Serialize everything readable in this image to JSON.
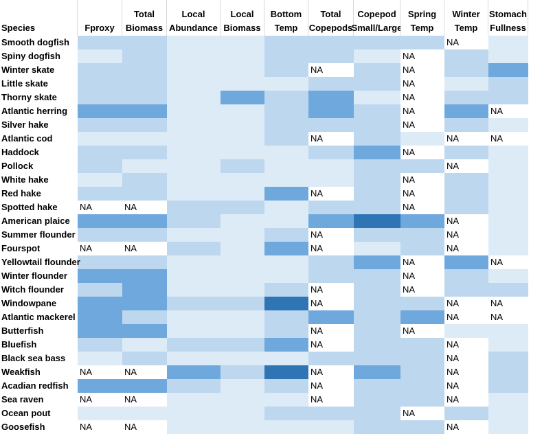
{
  "columns": [
    "Species",
    "Fproxy",
    "Total Biomass",
    "Local Abundance",
    "Local Biomass",
    "Bottom Temp",
    "Total Copepods",
    "Copepod Small/Large",
    "Spring Temp",
    "Winter Temp",
    "Stomach Fullness"
  ],
  "header_lines": [
    [
      "",
      "Species"
    ],
    [
      "",
      "Fproxy"
    ],
    [
      "Total",
      "Biomass"
    ],
    [
      "Local",
      "Abundance"
    ],
    [
      "Local",
      "Biomass"
    ],
    [
      "Bottom",
      "Temp"
    ],
    [
      "Total",
      "Copepods"
    ],
    [
      "Copepod",
      "Small/Large"
    ],
    [
      "Spring",
      "Temp"
    ],
    [
      "Winter",
      "Temp"
    ],
    [
      "Stomach",
      "Fullness"
    ]
  ],
  "colors": {
    "0": "#ffffff",
    "1": "#ddebf7",
    "2": "#bdd7ee",
    "3": "#6fa8dc",
    "4": "#2f75b5",
    "na": "#ffffff"
  },
  "legend_note": "cell shade levels: 0 = white, 1 = very light, 2 = light, 3 = medium, 4 = dark",
  "chart_data": {
    "type": "heatmap",
    "columns": [
      "Fproxy",
      "Total Biomass",
      "Local Abundance",
      "Local Biomass",
      "Bottom Temp",
      "Total Copepods",
      "Copepod Small/Large",
      "Spring Temp",
      "Winter Temp",
      "Stomach Fullness"
    ],
    "rows": [
      {
        "species": "Smooth dogfish",
        "cells": [
          2,
          2,
          1,
          1,
          2,
          2,
          2,
          2,
          "NA",
          1
        ]
      },
      {
        "species": "Spiny dogfish",
        "cells": [
          1,
          2,
          1,
          1,
          2,
          2,
          1,
          "NA",
          2,
          1
        ]
      },
      {
        "species": "Winter skate",
        "cells": [
          2,
          2,
          1,
          1,
          2,
          "NA",
          2,
          "NA",
          2,
          3
        ]
      },
      {
        "species": "Little skate",
        "cells": [
          2,
          2,
          1,
          1,
          1,
          2,
          2,
          "NA",
          1,
          2
        ]
      },
      {
        "species": "Thorny skate",
        "cells": [
          2,
          2,
          1,
          3,
          2,
          3,
          1,
          "NA",
          2,
          2
        ]
      },
      {
        "species": "Atlantic herring",
        "cells": [
          3,
          3,
          1,
          1,
          2,
          3,
          2,
          "NA",
          3,
          "NA"
        ]
      },
      {
        "species": "Silver hake",
        "cells": [
          2,
          2,
          1,
          1,
          2,
          2,
          2,
          "NA",
          2,
          1
        ]
      },
      {
        "species": "Atlantic cod",
        "cells": [
          1,
          1,
          1,
          1,
          2,
          "NA",
          2,
          1,
          "NA",
          "NA"
        ]
      },
      {
        "species": "Haddock",
        "cells": [
          2,
          2,
          1,
          1,
          1,
          2,
          3,
          "NA",
          2,
          1
        ]
      },
      {
        "species": "Pollock",
        "cells": [
          2,
          1,
          1,
          2,
          1,
          1,
          2,
          2,
          "NA",
          1
        ]
      },
      {
        "species": "White hake",
        "cells": [
          1,
          2,
          1,
          1,
          1,
          1,
          2,
          "NA",
          2,
          1
        ]
      },
      {
        "species": "Red hake",
        "cells": [
          2,
          2,
          1,
          1,
          3,
          "NA",
          2,
          "NA",
          2,
          1
        ]
      },
      {
        "species": "Spotted hake",
        "cells": [
          "NA",
          "NA",
          2,
          2,
          1,
          2,
          2,
          "NA",
          2,
          1
        ]
      },
      {
        "species": "American plaice",
        "cells": [
          3,
          3,
          2,
          1,
          1,
          3,
          4,
          3,
          "NA",
          1
        ]
      },
      {
        "species": "Summer flounder",
        "cells": [
          2,
          2,
          1,
          1,
          2,
          "NA",
          2,
          2,
          "NA",
          1
        ]
      },
      {
        "species": "Fourspot",
        "cells": [
          "NA",
          "NA",
          2,
          1,
          3,
          "NA",
          1,
          2,
          "NA",
          1
        ]
      },
      {
        "species": "Yellowtail flounder",
        "cells": [
          2,
          2,
          1,
          1,
          1,
          2,
          3,
          "NA",
          3,
          "NA"
        ]
      },
      {
        "species": "Winter flounder",
        "cells": [
          3,
          3,
          1,
          1,
          1,
          2,
          2,
          "NA",
          2,
          1
        ]
      },
      {
        "species": "Witch flounder",
        "cells": [
          2,
          3,
          1,
          1,
          2,
          "NA",
          2,
          "NA",
          2,
          2
        ]
      },
      {
        "species": "Windowpane",
        "cells": [
          3,
          3,
          2,
          2,
          4,
          "NA",
          2,
          2,
          "NA",
          "NA"
        ]
      },
      {
        "species": "Atlantic mackerel",
        "cells": [
          3,
          2,
          1,
          1,
          2,
          3,
          2,
          3,
          "NA",
          "NA"
        ]
      },
      {
        "species": "Butterfish",
        "cells": [
          3,
          3,
          1,
          1,
          2,
          "NA",
          2,
          "NA",
          1,
          1
        ]
      },
      {
        "species": "Bluefish",
        "cells": [
          2,
          1,
          2,
          2,
          3,
          "NA",
          2,
          2,
          "NA",
          1
        ]
      },
      {
        "species": "Black sea bass",
        "cells": [
          1,
          2,
          1,
          1,
          1,
          2,
          2,
          2,
          "NA",
          2
        ]
      },
      {
        "species": "Weakfish",
        "cells": [
          "NA",
          "NA",
          3,
          2,
          4,
          "NA",
          3,
          2,
          "NA",
          2
        ]
      },
      {
        "species": "Acadian redfish",
        "cells": [
          3,
          3,
          2,
          1,
          2,
          "NA",
          2,
          2,
          "NA",
          2
        ]
      },
      {
        "species": "Sea raven",
        "cells": [
          "NA",
          "NA",
          1,
          1,
          1,
          "NA",
          2,
          2,
          "NA",
          1
        ]
      },
      {
        "species": "Ocean pout",
        "cells": [
          1,
          1,
          1,
          1,
          2,
          2,
          2,
          "NA",
          2,
          1
        ]
      },
      {
        "species": "Goosefish",
        "cells": [
          "NA",
          "NA",
          1,
          1,
          1,
          1,
          2,
          2,
          "NA",
          1
        ]
      }
    ]
  }
}
